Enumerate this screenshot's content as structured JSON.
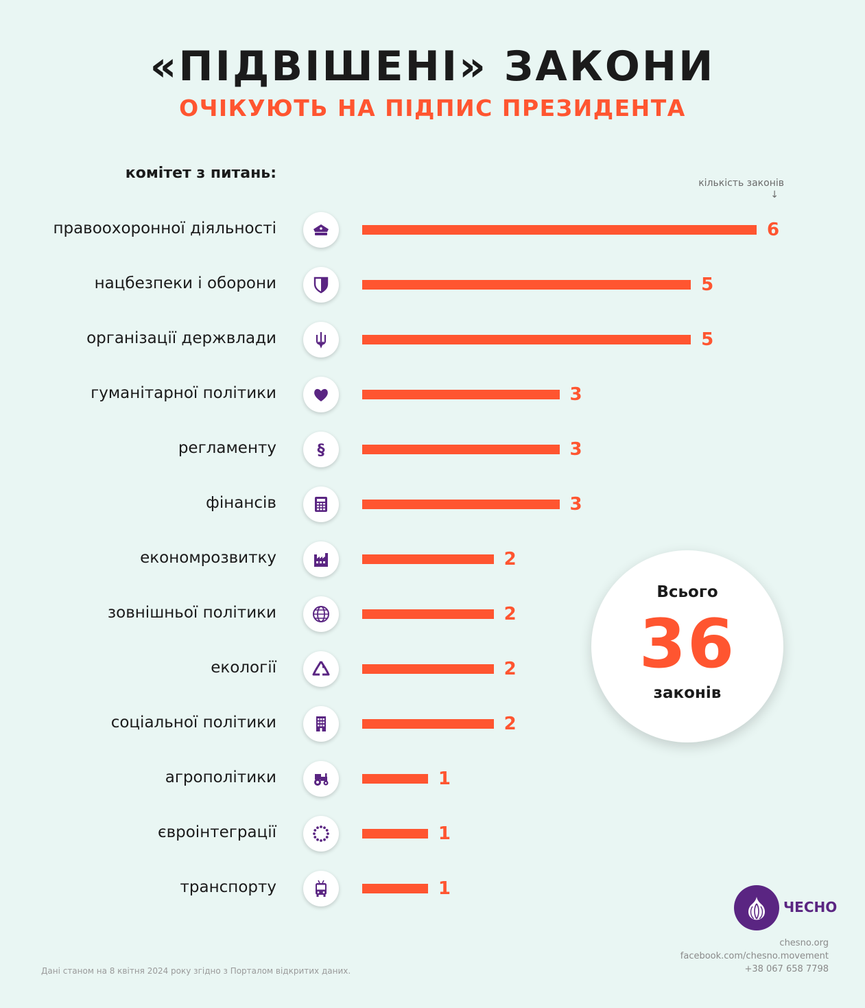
{
  "title": "«ПІДВІШЕНІ» ЗАКОНИ",
  "subtitle": "ОЧІКУЮТЬ НА ПІДПИС ПРЕЗИДЕНТА",
  "header_label": "комітет з питань:",
  "count_label": "кількість законів",
  "count_arrow": "↓",
  "colors": {
    "bar": "#ff5530",
    "icon": "#5a2582",
    "background": "#e9f6f3"
  },
  "chart_data": {
    "type": "bar",
    "orientation": "horizontal",
    "categories": [
      "правоохоронної діяльності",
      "нацбезпеки і оборони",
      "організації держвлади",
      "гуманітарної політики",
      "регламенту",
      "фінансів",
      "економрозвитку",
      "зовнішньої політики",
      "екології",
      "соціальної політики",
      "агрополітики",
      "євроінтеграції",
      "транспорту"
    ],
    "values": [
      6,
      5,
      5,
      3,
      3,
      3,
      2,
      2,
      2,
      2,
      1,
      1,
      1
    ],
    "icons": [
      "police-cap-icon",
      "shield-icon",
      "trident-icon",
      "heart-icon",
      "section-sign-icon",
      "calculator-icon",
      "factory-icon",
      "globe-icon",
      "recycle-icon",
      "building-icon",
      "tractor-icon",
      "eu-stars-icon",
      "trolleybus-icon"
    ],
    "grid": false
  },
  "total": {
    "top": "Всього",
    "value": "36",
    "bottom": "законів"
  },
  "logo": {
    "text": "ЧЕСНО"
  },
  "contacts": [
    "chesno.org",
    "facebook.com/chesno.movement",
    "+38 067 658 7798"
  ],
  "footnote": "Дані станом на 8 квітня 2024 року згідно з Порталом відкритих даних."
}
